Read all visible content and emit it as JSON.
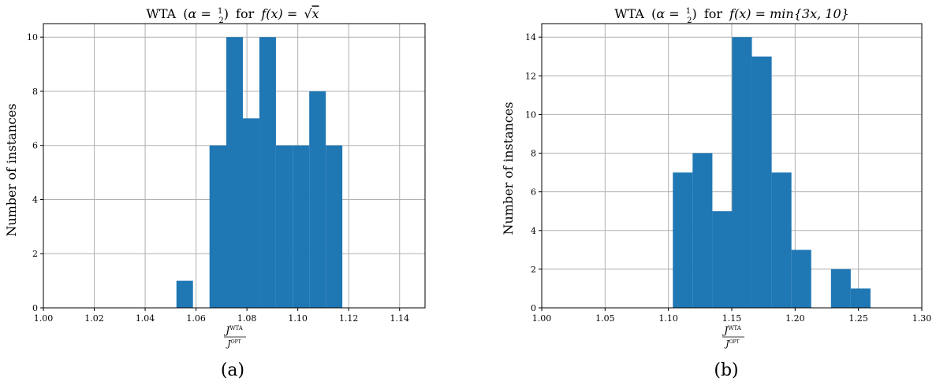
{
  "chart_data": [
    {
      "type": "histogram",
      "title": "WTA (α = 1/2) for f(x) = √x",
      "title_parts": {
        "prefix": "WTA",
        "alpha": "α =",
        "frac_num": "1",
        "frac_den": "2",
        "mid": "for",
        "func": "f(x) =",
        "arg": "x"
      },
      "xlabel": {
        "num": "J",
        "num_sup": "WTA",
        "den": "J",
        "den_sup": "OPT"
      },
      "ylabel": "Number of instances",
      "caption": "(a)",
      "xlim": [
        1.0,
        1.15
      ],
      "ylim": [
        0,
        10.5
      ],
      "xticks": [
        1.0,
        1.02,
        1.04,
        1.06,
        1.08,
        1.1,
        1.12,
        1.14
      ],
      "xtick_labels": [
        "1.00",
        "1.02",
        "1.04",
        "1.06",
        "1.08",
        "1.10",
        "1.12",
        "1.14"
      ],
      "yticks": [
        0,
        2,
        4,
        6,
        8,
        10
      ],
      "ytick_labels": [
        "0",
        "2",
        "4",
        "6",
        "8",
        "10"
      ],
      "grid": true,
      "color": "#1f77b4",
      "bins": [
        {
          "x0": 1.0523,
          "x1": 1.0588,
          "count": 1
        },
        {
          "x0": 1.0653,
          "x1": 1.0719,
          "count": 6
        },
        {
          "x0": 1.0719,
          "x1": 1.0784,
          "count": 10
        },
        {
          "x0": 1.0784,
          "x1": 1.0849,
          "count": 7
        },
        {
          "x0": 1.0849,
          "x1": 1.0914,
          "count": 10
        },
        {
          "x0": 1.0914,
          "x1": 1.098,
          "count": 6
        },
        {
          "x0": 1.098,
          "x1": 1.1045,
          "count": 6
        },
        {
          "x0": 1.1045,
          "x1": 1.111,
          "count": 8
        },
        {
          "x0": 1.111,
          "x1": 1.1175,
          "count": 6
        }
      ]
    },
    {
      "type": "histogram",
      "title": "WTA (α = 1/2) for f(x) = min{3x, 10}",
      "title_parts": {
        "prefix": "WTA",
        "alpha": "α =",
        "frac_num": "1",
        "frac_den": "2",
        "mid": "for",
        "func": "f(x) = min{3x, 10}"
      },
      "xlabel": {
        "num": "J",
        "num_sup": "WTA",
        "den": "J",
        "den_sup": "OPT"
      },
      "ylabel": "Number of instances",
      "caption": "(b)",
      "xlim": [
        1.0,
        1.3
      ],
      "ylim": [
        0,
        14.7
      ],
      "xticks": [
        1.0,
        1.05,
        1.1,
        1.15,
        1.2,
        1.25,
        1.3
      ],
      "xtick_labels": [
        "1.00",
        "1.05",
        "1.10",
        "1.15",
        "1.20",
        "1.25",
        "1.30"
      ],
      "yticks": [
        0,
        2,
        4,
        6,
        8,
        10,
        12,
        14
      ],
      "ytick_labels": [
        "0",
        "2",
        "4",
        "6",
        "8",
        "10",
        "12",
        "14"
      ],
      "grid": true,
      "color": "#1f77b4",
      "bins": [
        {
          "x0": 1.1035,
          "x1": 1.1191,
          "count": 7
        },
        {
          "x0": 1.1191,
          "x1": 1.1347,
          "count": 8
        },
        {
          "x0": 1.1347,
          "x1": 1.1503,
          "count": 5
        },
        {
          "x0": 1.1503,
          "x1": 1.1659,
          "count": 14
        },
        {
          "x0": 1.1659,
          "x1": 1.1815,
          "count": 13
        },
        {
          "x0": 1.1815,
          "x1": 1.1971,
          "count": 7
        },
        {
          "x0": 1.1971,
          "x1": 1.2127,
          "count": 3
        },
        {
          "x0": 1.2283,
          "x1": 1.2439,
          "count": 2
        },
        {
          "x0": 1.2439,
          "x1": 1.2595,
          "count": 1
        }
      ]
    }
  ]
}
